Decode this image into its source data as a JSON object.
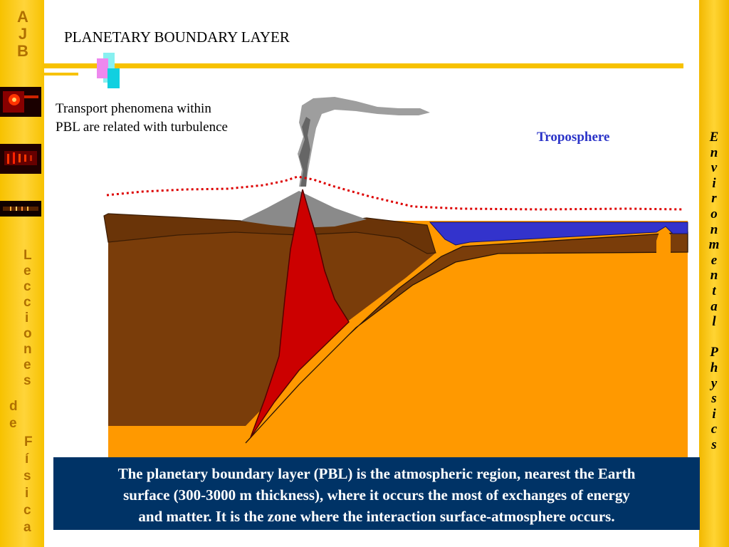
{
  "logo": [
    "A",
    "J",
    "B"
  ],
  "title": "PLANETARY BOUNDARY LAYER",
  "transport_text": [
    "Transport phenomena within",
    "PBL are related with turbulence"
  ],
  "troposphere_label": "Troposphere",
  "caption": {
    "line1": "The planetary boundary layer (PBL) is the atmospheric region, nearest the Earth",
    "line2": "surface (300-3000 m thickness),  where it occurs the most of exchanges of energy",
    "line3": "and matter. It is the zone where the interaction surface-atmosphere occurs."
  },
  "side_left": [
    "L",
    "e",
    "c",
    "c",
    "i",
    "o",
    "n",
    "e",
    "s",
    "d",
    "e",
    "F",
    "í",
    "s",
    "i",
    "c",
    "a"
  ],
  "side_right": [
    "E",
    "n",
    "v",
    "i",
    "r",
    "o",
    "n",
    "m",
    "e",
    "n",
    "t",
    "a",
    "l",
    "",
    "P",
    "h",
    "y",
    "s",
    "i",
    "c",
    "s"
  ],
  "colors": {
    "gold_bar": "#f7c200",
    "caption_bg": "#003366",
    "troposphere": "#2b34c8",
    "magma": "#cc0000",
    "mantle": "#ff9900",
    "crust": "#7a3d0a",
    "ocean": "#3333cc",
    "pbl_line": "#dd0000"
  }
}
